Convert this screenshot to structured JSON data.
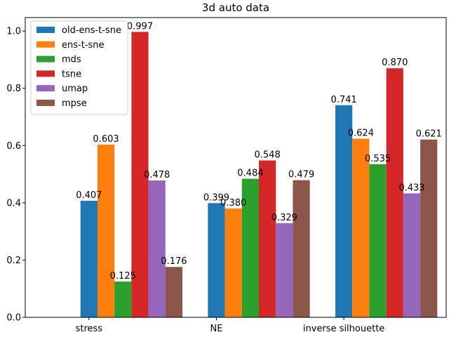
{
  "chart_data": {
    "type": "bar",
    "title": "3d auto data",
    "xlabel": "",
    "ylabel": "",
    "categories": [
      "stress",
      "NE",
      "inverse silhouette"
    ],
    "ylim": [
      0,
      1.047
    ],
    "yticks": [
      "0.0",
      "0.2",
      "0.4",
      "0.6",
      "0.8",
      "1.0"
    ],
    "grid": false,
    "legend_position": "top-left",
    "series": [
      {
        "name": "old-ens-t-sne",
        "color": "#1f77b4",
        "values": [
          0.407,
          0.399,
          0.741
        ],
        "labels": [
          "0.407",
          "0.399",
          "0.741"
        ]
      },
      {
        "name": "ens-t-sne",
        "color": "#ff7f0e",
        "values": [
          0.603,
          0.38,
          0.624
        ],
        "labels": [
          "0.603",
          "0.380",
          "0.624"
        ]
      },
      {
        "name": "mds",
        "color": "#2ca02c",
        "values": [
          0.125,
          0.484,
          0.535
        ],
        "labels": [
          "0.125",
          "0.484",
          "0.535"
        ]
      },
      {
        "name": "tsne",
        "color": "#d62728",
        "values": [
          0.997,
          0.548,
          0.87
        ],
        "labels": [
          "0.997",
          "0.548",
          "0.870"
        ]
      },
      {
        "name": "umap",
        "color": "#9467bd",
        "values": [
          0.478,
          0.329,
          0.433
        ],
        "labels": [
          "0.478",
          "0.329",
          "0.433"
        ]
      },
      {
        "name": "mpse",
        "color": "#8c564b",
        "values": [
          0.176,
          0.479,
          0.621
        ],
        "labels": [
          "0.176",
          "0.479",
          "0.621"
        ]
      }
    ]
  }
}
